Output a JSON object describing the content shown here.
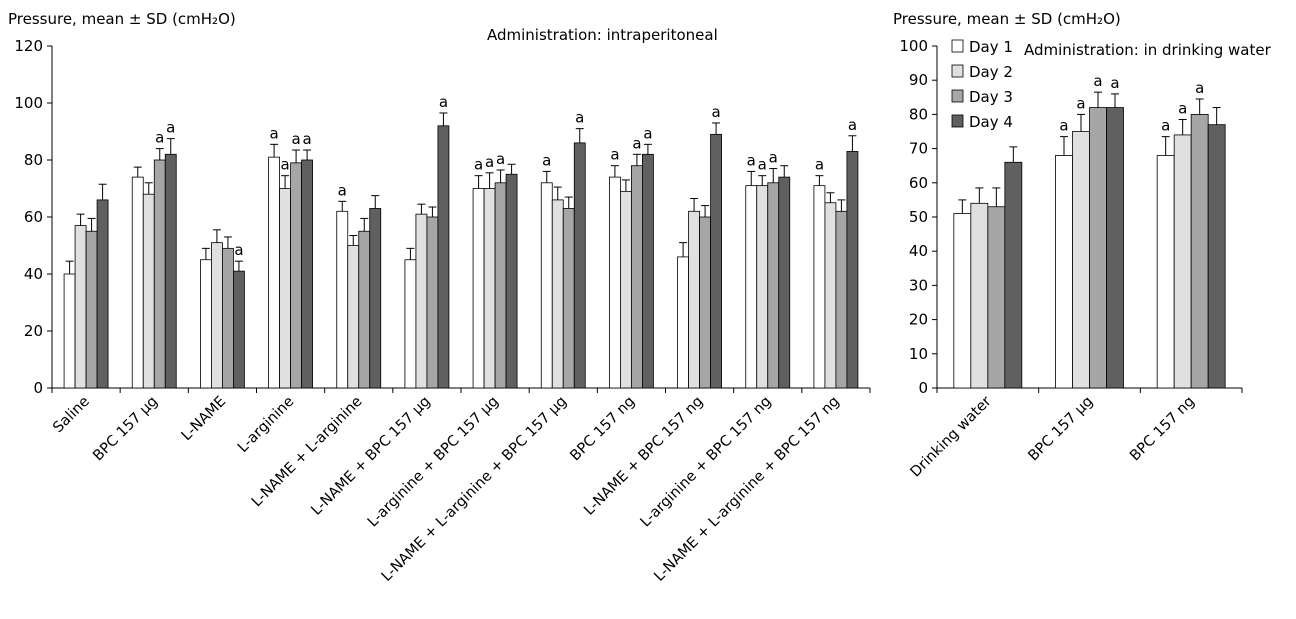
{
  "chart_data": [
    {
      "type": "bar",
      "ylabel": "Pressure, mean ± SD (cmH₂O)",
      "title": "Administration: intraperitoneal",
      "ylim": [
        0,
        120
      ],
      "yticks": [
        "0",
        "20",
        "40",
        "60",
        "80",
        "100",
        "120"
      ],
      "categories": [
        "Saline",
        "BPC 157 µg",
        "L-NAME",
        "L-arginine",
        "L-NAME + L-arginine",
        "L-NAME + BPC 157 µg",
        "L-arginine + BPC 157 µg",
        "L-NAME + L-arginine + BPC 157 µg",
        "BPC 157 ng",
        "L-NAME + BPC 157 ng",
        "L-arginine + BPC 157 ng",
        "L-NAME + L-arginine + BPC 157 ng"
      ],
      "series": [
        {
          "name": "Day 1",
          "values": [
            40,
            74,
            45,
            81,
            62,
            45,
            70,
            72,
            74,
            46,
            71,
            71
          ],
          "errors": [
            4.5,
            3.5,
            4,
            4.5,
            3.5,
            4,
            4.5,
            4,
            4,
            5,
            5,
            3.5
          ],
          "significance": [
            "",
            "",
            "",
            "a",
            "a",
            "",
            "a",
            "a",
            "a",
            "",
            "a",
            "a"
          ]
        },
        {
          "name": "Day 2",
          "values": [
            57,
            68,
            51,
            70,
            50,
            61,
            70,
            66,
            69,
            62,
            71,
            65
          ],
          "errors": [
            4,
            4,
            4.5,
            4.5,
            3.5,
            3.5,
            5.5,
            4.5,
            4,
            4.5,
            3.5,
            3.5
          ],
          "significance": [
            "",
            "",
            "",
            "a",
            "",
            "",
            "a",
            "",
            "",
            "",
            "a",
            ""
          ]
        },
        {
          "name": "Day 3",
          "values": [
            55,
            80,
            49,
            79,
            55,
            60,
            72,
            63,
            78,
            60,
            72,
            62
          ],
          "errors": [
            4.5,
            4,
            4,
            4.5,
            4.5,
            3.5,
            4.5,
            4,
            4,
            4,
            5,
            4
          ],
          "significance": [
            "",
            "a",
            "",
            "a",
            "",
            "",
            "a",
            "",
            "a",
            "",
            "a",
            ""
          ]
        },
        {
          "name": "Day 4",
          "values": [
            66,
            82,
            41,
            80,
            63,
            92,
            75,
            86,
            82,
            89,
            74,
            83
          ],
          "errors": [
            5.5,
            5.5,
            3.5,
            3.5,
            4.5,
            4.5,
            3.5,
            5,
            3.5,
            4,
            4,
            5.5
          ],
          "significance": [
            "",
            "a",
            "a",
            "a",
            "",
            "a",
            "",
            "a",
            "a",
            "a",
            "",
            "a"
          ]
        }
      ]
    },
    {
      "type": "bar",
      "ylabel": "Pressure, mean ± SD (cmH₂O)",
      "title": "Administration: in drinking water",
      "ylim": [
        0,
        100
      ],
      "yticks": [
        "0",
        "10",
        "20",
        "30",
        "40",
        "50",
        "60",
        "70",
        "80",
        "90",
        "100"
      ],
      "categories": [
        "Drinking water",
        "BPC 157 µg",
        "BPC 157 ng"
      ],
      "legend": {
        "placement": "top-left",
        "entries": [
          "Day 1",
          "Day 2",
          "Day 3",
          "Day 4"
        ]
      },
      "series": [
        {
          "name": "Day 1",
          "values": [
            51,
            68,
            68
          ],
          "errors": [
            4,
            5.5,
            5.5
          ],
          "significance": [
            "",
            "a",
            "a"
          ]
        },
        {
          "name": "Day 2",
          "values": [
            54,
            75,
            74
          ],
          "errors": [
            4.5,
            5,
            4.5
          ],
          "significance": [
            "",
            "a",
            "a"
          ]
        },
        {
          "name": "Day 3",
          "values": [
            53,
            82,
            80
          ],
          "errors": [
            5.5,
            4.5,
            4.5
          ],
          "significance": [
            "",
            "a",
            "a"
          ]
        },
        {
          "name": "Day 4",
          "values": [
            66,
            82,
            77
          ],
          "errors": [
            4.5,
            4,
            5
          ],
          "significance": [
            "",
            "a",
            ""
          ]
        }
      ]
    }
  ],
  "colors": {
    "day1": "#ffffff",
    "day2": "#e0e0e0",
    "day3": "#a6a6a6",
    "day4": "#606060",
    "stroke": "#000000"
  }
}
